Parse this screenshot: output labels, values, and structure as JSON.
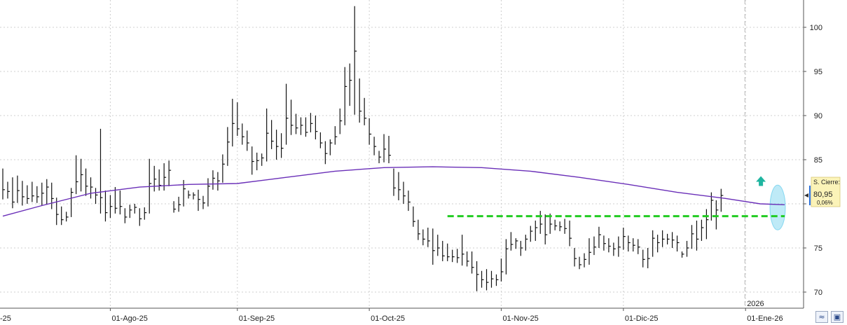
{
  "chart_data": {
    "type": "ohlc-bar",
    "y_ticks": [
      100,
      95,
      90,
      85,
      80,
      75,
      70
    ],
    "ylim": [
      67.8,
      103
    ],
    "grid": true,
    "x_labels": [
      {
        "label": "-25",
        "index": 0
      },
      {
        "label": "01-Ago-25",
        "index": 22
      },
      {
        "label": "01-Sep-25",
        "index": 48
      },
      {
        "label": "01-Oct-25",
        "index": 75
      },
      {
        "label": "01-Nov-25",
        "index": 102
      },
      {
        "label": "01-Dic-25",
        "index": 127
      },
      {
        "label": "01-Ene-26",
        "index": 152
      }
    ],
    "year_marker": {
      "label": "2026",
      "index": 152
    },
    "bars": [
      {
        "h": 84.0,
        "l": 80.5,
        "c": 81.6
      },
      {
        "h": 82.5,
        "l": 80.6,
        "c": 81.4
      },
      {
        "h": 83.0,
        "l": 79.5,
        "c": 80.2
      },
      {
        "h": 83.2,
        "l": 80.1,
        "c": 81.5
      },
      {
        "h": 82.6,
        "l": 79.8,
        "c": 80.8
      },
      {
        "h": 82.1,
        "l": 80.0,
        "c": 80.6
      },
      {
        "h": 82.5,
        "l": 80.2,
        "c": 80.9
      },
      {
        "h": 82.0,
        "l": 80.1,
        "c": 80.8
      },
      {
        "h": 82.4,
        "l": 79.8,
        "c": 81.2
      },
      {
        "h": 82.8,
        "l": 79.9,
        "c": 81.9
      },
      {
        "h": 82.4,
        "l": 79.4,
        "c": 80.6
      },
      {
        "h": 80.7,
        "l": 77.6,
        "c": 78.8
      },
      {
        "h": 79.7,
        "l": 77.6,
        "c": 78.2
      },
      {
        "h": 79.1,
        "l": 78.0,
        "c": 78.5
      },
      {
        "h": 81.8,
        "l": 78.5,
        "c": 81.3
      },
      {
        "h": 85.5,
        "l": 81.1,
        "c": 82.5
      },
      {
        "h": 85.1,
        "l": 81.4,
        "c": 83.3
      },
      {
        "h": 84.0,
        "l": 80.9,
        "c": 82.0
      },
      {
        "h": 83.0,
        "l": 80.6,
        "c": 81.9
      },
      {
        "h": 81.8,
        "l": 80.0,
        "c": 81.0
      },
      {
        "h": 88.5,
        "l": 78.9,
        "c": 80.7
      },
      {
        "h": 81.5,
        "l": 78.0,
        "c": 79.0
      },
      {
        "h": 81.0,
        "l": 78.4,
        "c": 79.7
      },
      {
        "h": 81.9,
        "l": 78.9,
        "c": 79.5
      },
      {
        "h": 81.5,
        "l": 78.8,
        "c": 79.7
      },
      {
        "h": 79.5,
        "l": 77.8,
        "c": 78.5
      },
      {
        "h": 79.9,
        "l": 78.4,
        "c": 79.3
      },
      {
        "h": 80.0,
        "l": 78.9,
        "c": 79.6
      },
      {
        "h": 79.5,
        "l": 77.5,
        "c": 78.3
      },
      {
        "h": 79.6,
        "l": 78.2,
        "c": 79.0
      },
      {
        "h": 85.1,
        "l": 78.9,
        "c": 82.3
      },
      {
        "h": 84.3,
        "l": 81.4,
        "c": 82.8
      },
      {
        "h": 83.9,
        "l": 81.5,
        "c": 82.1
      },
      {
        "h": 84.6,
        "l": 81.5,
        "c": 83.0
      },
      {
        "h": 84.9,
        "l": 82.0,
        "c": 83.8
      },
      {
        "h": 80.3,
        "l": 79.0,
        "c": 79.4
      },
      {
        "h": 80.8,
        "l": 79.1,
        "c": 79.9
      },
      {
        "h": 82.7,
        "l": 79.7,
        "c": 81.7
      },
      {
        "h": 81.5,
        "l": 80.6,
        "c": 81.0
      },
      {
        "h": 81.3,
        "l": 80.5,
        "c": 81.0
      },
      {
        "h": 81.6,
        "l": 79.2,
        "c": 80.5
      },
      {
        "h": 80.9,
        "l": 79.4,
        "c": 80.1
      },
      {
        "h": 82.9,
        "l": 79.7,
        "c": 82.0
      },
      {
        "h": 83.8,
        "l": 81.6,
        "c": 82.9
      },
      {
        "h": 83.6,
        "l": 81.5,
        "c": 82.6
      },
      {
        "h": 85.6,
        "l": 82.4,
        "c": 84.5
      },
      {
        "h": 88.7,
        "l": 84.3,
        "c": 87.0
      },
      {
        "h": 91.9,
        "l": 86.5,
        "c": 89.1
      },
      {
        "h": 91.5,
        "l": 87.7,
        "c": 88.5
      },
      {
        "h": 89.1,
        "l": 86.7,
        "c": 87.6
      },
      {
        "h": 88.3,
        "l": 86.0,
        "c": 86.9
      },
      {
        "h": 86.5,
        "l": 83.3,
        "c": 84.8
      },
      {
        "h": 85.8,
        "l": 83.8,
        "c": 84.9
      },
      {
        "h": 85.7,
        "l": 84.3,
        "c": 85.2
      },
      {
        "h": 90.8,
        "l": 84.8,
        "c": 88.0
      },
      {
        "h": 89.5,
        "l": 86.2,
        "c": 87.1
      },
      {
        "h": 88.4,
        "l": 85.0,
        "c": 86.5
      },
      {
        "h": 88.0,
        "l": 85.2,
        "c": 86.3
      },
      {
        "h": 93.6,
        "l": 86.7,
        "c": 89.7
      },
      {
        "h": 91.8,
        "l": 87.8,
        "c": 88.9
      },
      {
        "h": 90.2,
        "l": 87.9,
        "c": 88.6
      },
      {
        "h": 89.8,
        "l": 87.8,
        "c": 88.9
      },
      {
        "h": 89.8,
        "l": 87.6,
        "c": 88.1
      },
      {
        "h": 90.3,
        "l": 88.1,
        "c": 89.1
      },
      {
        "h": 90.0,
        "l": 87.3,
        "c": 88.2
      },
      {
        "h": 88.1,
        "l": 86.3,
        "c": 86.9
      },
      {
        "h": 87.1,
        "l": 84.5,
        "c": 85.7
      },
      {
        "h": 87.3,
        "l": 85.5,
        "c": 86.9
      },
      {
        "h": 88.8,
        "l": 86.7,
        "c": 87.6
      },
      {
        "h": 90.8,
        "l": 87.9,
        "c": 89.4
      },
      {
        "h": 95.5,
        "l": 88.9,
        "c": 93.3
      },
      {
        "h": 95.9,
        "l": 91.1,
        "c": 94.0
      },
      {
        "h": 102.4,
        "l": 90.1,
        "c": 97.3
      },
      {
        "h": 94.2,
        "l": 89.2,
        "c": 90.5
      },
      {
        "h": 92.0,
        "l": 88.9,
        "c": 89.7
      },
      {
        "h": 89.7,
        "l": 86.7,
        "c": 87.9
      },
      {
        "h": 87.6,
        "l": 85.5,
        "c": 86.5
      },
      {
        "h": 86.0,
        "l": 84.6,
        "c": 85.3
      },
      {
        "h": 87.9,
        "l": 84.7,
        "c": 86.2
      },
      {
        "h": 87.7,
        "l": 84.6,
        "c": 85.5
      },
      {
        "h": 84.0,
        "l": 80.9,
        "c": 81.8
      },
      {
        "h": 83.6,
        "l": 80.4,
        "c": 81.6
      },
      {
        "h": 82.5,
        "l": 80.0,
        "c": 80.9
      },
      {
        "h": 81.5,
        "l": 79.2,
        "c": 80.2
      },
      {
        "h": 79.7,
        "l": 77.4,
        "c": 78.0
      },
      {
        "h": 78.2,
        "l": 75.9,
        "c": 76.6
      },
      {
        "h": 77.1,
        "l": 75.3,
        "c": 76.0
      },
      {
        "h": 77.3,
        "l": 75.1,
        "c": 75.8
      },
      {
        "h": 77.2,
        "l": 73.1,
        "c": 74.7
      },
      {
        "h": 76.5,
        "l": 74.1,
        "c": 75.0
      },
      {
        "h": 75.8,
        "l": 73.5,
        "c": 74.1
      },
      {
        "h": 75.5,
        "l": 73.5,
        "c": 74.0
      },
      {
        "h": 74.8,
        "l": 73.4,
        "c": 74.0
      },
      {
        "h": 74.9,
        "l": 73.3,
        "c": 73.9
      },
      {
        "h": 76.5,
        "l": 73.0,
        "c": 74.3
      },
      {
        "h": 74.6,
        "l": 72.9,
        "c": 73.5
      },
      {
        "h": 74.6,
        "l": 72.1,
        "c": 72.8
      },
      {
        "h": 73.5,
        "l": 70.1,
        "c": 72.0
      },
      {
        "h": 72.4,
        "l": 70.5,
        "c": 71.4
      },
      {
        "h": 72.6,
        "l": 70.2,
        "c": 71.1
      },
      {
        "h": 72.4,
        "l": 70.5,
        "c": 71.5
      },
      {
        "h": 72.0,
        "l": 70.7,
        "c": 71.4
      },
      {
        "h": 73.8,
        "l": 71.2,
        "c": 72.3
      },
      {
        "h": 76.0,
        "l": 72.0,
        "c": 74.9
      },
      {
        "h": 76.8,
        "l": 74.7,
        "c": 75.4
      },
      {
        "h": 76.1,
        "l": 74.9,
        "c": 75.8
      },
      {
        "h": 75.8,
        "l": 74.1,
        "c": 75.0
      },
      {
        "h": 76.5,
        "l": 74.7,
        "c": 76.0
      },
      {
        "h": 77.5,
        "l": 75.7,
        "c": 76.9
      },
      {
        "h": 78.1,
        "l": 75.8,
        "c": 77.3
      },
      {
        "h": 79.2,
        "l": 76.6,
        "c": 77.7
      },
      {
        "h": 78.8,
        "l": 75.4,
        "c": 76.5
      },
      {
        "h": 78.9,
        "l": 76.6,
        "c": 77.7
      },
      {
        "h": 78.2,
        "l": 77.0,
        "c": 77.5
      },
      {
        "h": 78.0,
        "l": 76.9,
        "c": 77.4
      },
      {
        "h": 78.3,
        "l": 76.6,
        "c": 77.2
      },
      {
        "h": 78.1,
        "l": 75.2,
        "c": 76.1
      },
      {
        "h": 75.0,
        "l": 72.9,
        "c": 73.8
      },
      {
        "h": 74.0,
        "l": 72.6,
        "c": 73.1
      },
      {
        "h": 74.4,
        "l": 72.8,
        "c": 73.7
      },
      {
        "h": 76.1,
        "l": 73.1,
        "c": 74.5
      },
      {
        "h": 76.3,
        "l": 74.2,
        "c": 75.1
      },
      {
        "h": 77.4,
        "l": 75.0,
        "c": 76.5
      },
      {
        "h": 76.4,
        "l": 74.7,
        "c": 75.5
      },
      {
        "h": 76.1,
        "l": 74.5,
        "c": 75.2
      },
      {
        "h": 75.6,
        "l": 74.1,
        "c": 74.9
      },
      {
        "h": 76.3,
        "l": 74.0,
        "c": 75.1
      },
      {
        "h": 77.3,
        "l": 74.8,
        "c": 76.3
      },
      {
        "h": 76.4,
        "l": 74.6,
        "c": 75.6
      },
      {
        "h": 76.1,
        "l": 74.6,
        "c": 75.3
      },
      {
        "h": 76.0,
        "l": 74.3,
        "c": 75.1
      },
      {
        "h": 74.8,
        "l": 72.8,
        "c": 73.7
      },
      {
        "h": 75.0,
        "l": 72.7,
        "c": 73.8
      },
      {
        "h": 77.0,
        "l": 74.0,
        "c": 76.1
      },
      {
        "h": 76.5,
        "l": 74.5,
        "c": 75.6
      },
      {
        "h": 77.0,
        "l": 75.1,
        "c": 76.0
      },
      {
        "h": 76.6,
        "l": 75.4,
        "c": 76.0
      },
      {
        "h": 76.8,
        "l": 75.0,
        "c": 75.9
      },
      {
        "h": 76.4,
        "l": 74.6,
        "c": 75.6
      },
      {
        "h": 74.6,
        "l": 73.9,
        "c": 74.3
      },
      {
        "h": 75.8,
        "l": 74.0,
        "c": 75.0
      },
      {
        "h": 77.6,
        "l": 74.9,
        "c": 76.6
      },
      {
        "h": 78.1,
        "l": 74.7,
        "c": 76.0
      },
      {
        "h": 78.2,
        "l": 75.8,
        "c": 77.3
      },
      {
        "h": 79.4,
        "l": 76.0,
        "c": 78.2
      },
      {
        "h": 81.3,
        "l": 78.1,
        "c": 80.4
      },
      {
        "h": 80.4,
        "l": 77.1,
        "c": 79.3
      },
      {
        "h": 81.7,
        "l": 79.1,
        "c": 80.95
      }
    ],
    "moving_average": {
      "color": "#6a2fb8",
      "points": [
        [
          0,
          78.6
        ],
        [
          8,
          79.8
        ],
        [
          18,
          81.2
        ],
        [
          28,
          81.9
        ],
        [
          38,
          82.2
        ],
        [
          48,
          82.3
        ],
        [
          58,
          83.0
        ],
        [
          68,
          83.7
        ],
        [
          78,
          84.1
        ],
        [
          88,
          84.2
        ],
        [
          98,
          84.1
        ],
        [
          108,
          83.7
        ],
        [
          118,
          83.0
        ],
        [
          128,
          82.2
        ],
        [
          138,
          81.3
        ],
        [
          148,
          80.6
        ],
        [
          155,
          80.0
        ],
        [
          160,
          79.9
        ]
      ]
    },
    "support_line": {
      "value": 78.6,
      "from_index": 91,
      "to_index": 160,
      "color": "#22cc22"
    },
    "highlight": {
      "index": 159,
      "value": 79.9,
      "color": "#6fd0ee"
    },
    "up_arrow": {
      "index": 156,
      "value": 82.5,
      "color": "#1fb5a0"
    },
    "last_price": {
      "label": "S. Cierre:",
      "value": "80,95",
      "change": "0,06%",
      "y": 80.95
    },
    "colors": {
      "bars": "#111111",
      "grid": "#cfcfcf",
      "axis": "#555555",
      "label_bg": "#fbf3b8"
    }
  },
  "toolbar": {
    "chart-icon": "chart-icon",
    "save-icon": "save-icon"
  }
}
